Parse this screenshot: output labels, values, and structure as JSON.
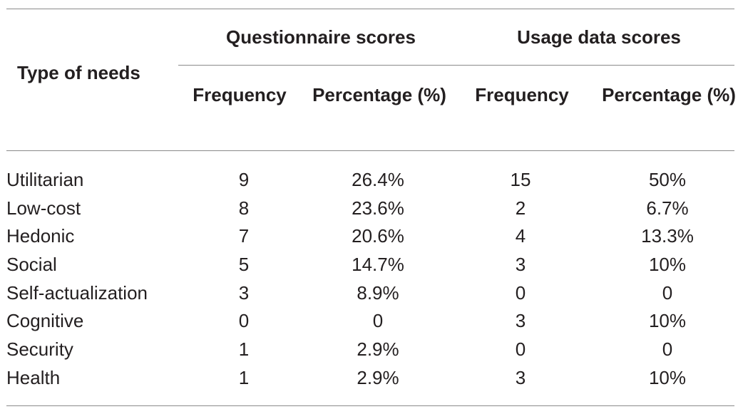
{
  "table": {
    "headers": {
      "type": "Type of needs",
      "questionnaire": "Questionnaire scores",
      "usage": "Usage data scores",
      "frequency": "Frequency",
      "percentage": "Percentage (%)"
    },
    "rows": [
      {
        "need": "Utilitarian",
        "q_freq": "9",
        "q_pct": "26.4%",
        "u_freq": "15",
        "u_pct": "50%"
      },
      {
        "need": "Low-cost",
        "q_freq": "8",
        "q_pct": "23.6%",
        "u_freq": "2",
        "u_pct": "6.7%"
      },
      {
        "need": "Hedonic",
        "q_freq": "7",
        "q_pct": "20.6%",
        "u_freq": "4",
        "u_pct": "13.3%"
      },
      {
        "need": "Social",
        "q_freq": "5",
        "q_pct": "14.7%",
        "u_freq": "3",
        "u_pct": "10%"
      },
      {
        "need": "Self-actualization",
        "q_freq": "3",
        "q_pct": "8.9%",
        "u_freq": "0",
        "u_pct": "0"
      },
      {
        "need": "Cognitive",
        "q_freq": "0",
        "q_pct": "0",
        "u_freq": "3",
        "u_pct": "10%"
      },
      {
        "need": "Security",
        "q_freq": "1",
        "q_pct": "2.9%",
        "u_freq": "0",
        "u_pct": "0"
      },
      {
        "need": "Health",
        "q_freq": "1",
        "q_pct": "2.9%",
        "u_freq": "3",
        "u_pct": "10%"
      }
    ]
  }
}
